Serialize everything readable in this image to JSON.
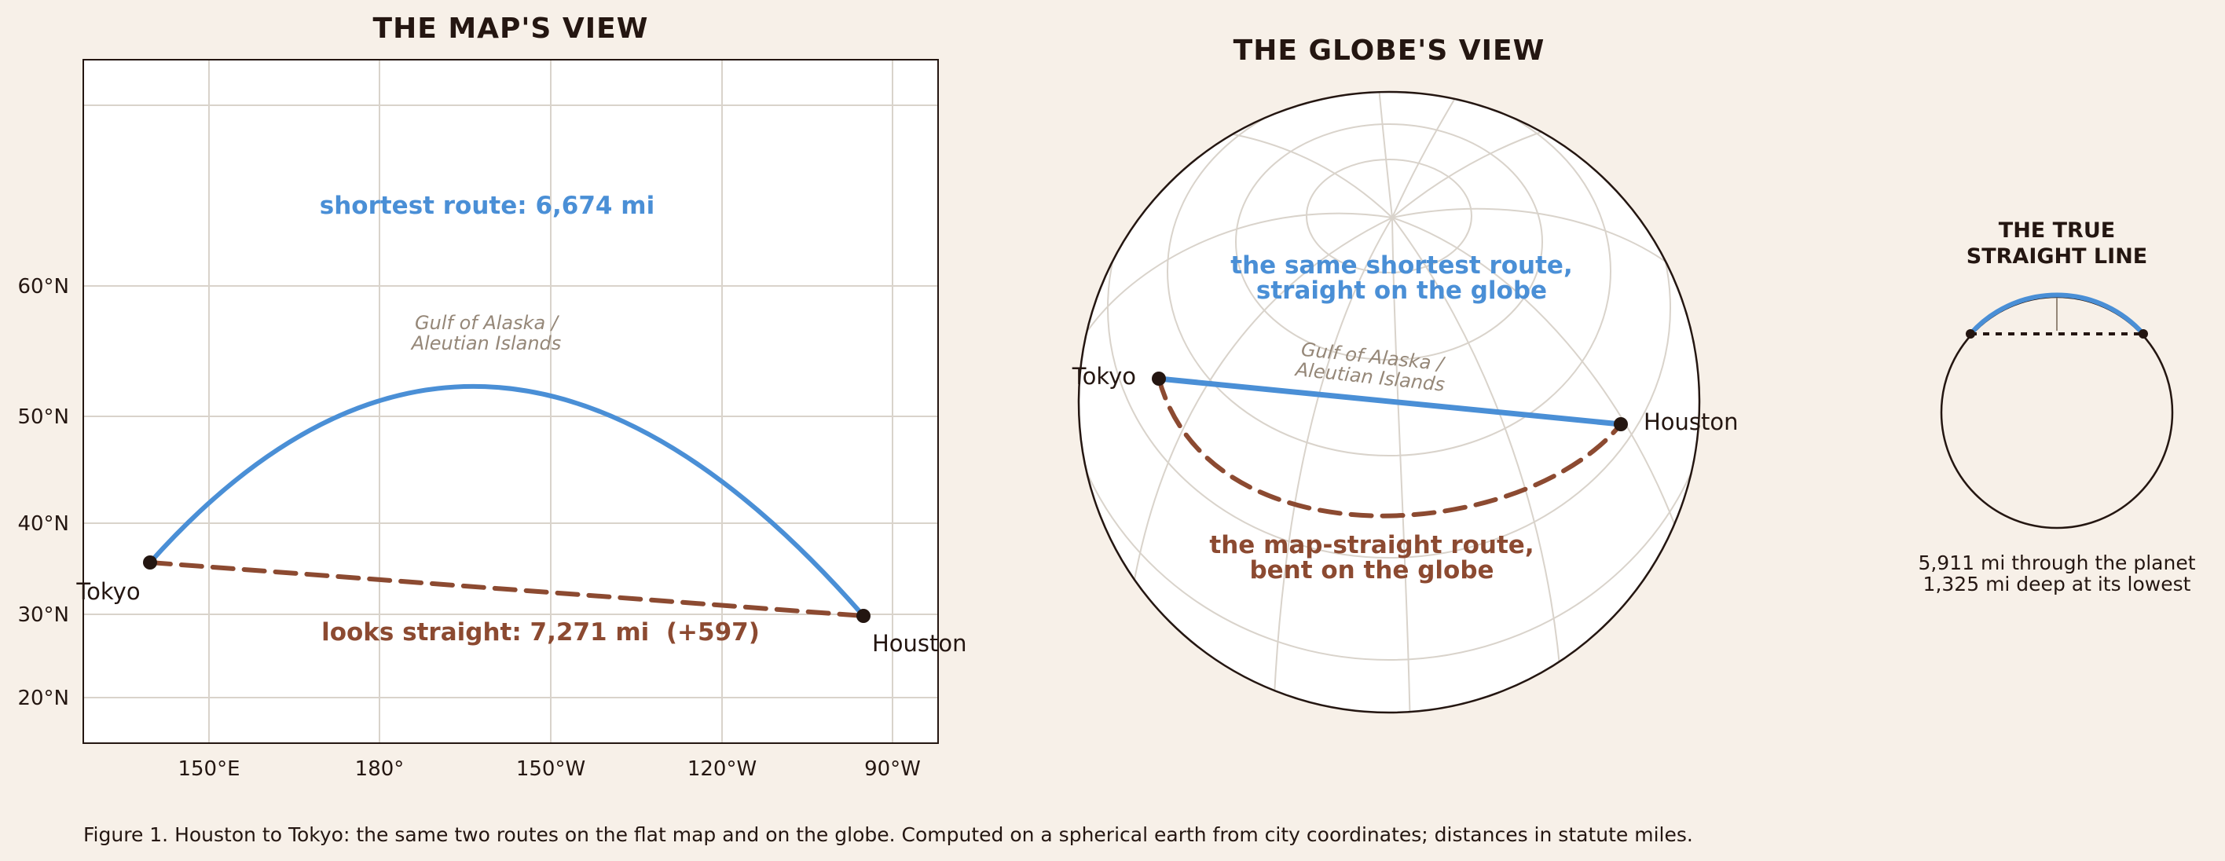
{
  "map_panel": {
    "title": "THE MAP'S VIEW",
    "lat_ticks": [
      "60°N",
      "50°N",
      "40°N",
      "30°N",
      "20°N"
    ],
    "lon_ticks": [
      "150°E",
      "180°",
      "150°W",
      "120°W",
      "90°W"
    ],
    "shortest_label": "shortest route: 6,674 mi",
    "straight_label": "looks straight: 7,271 mi  (+597)",
    "region_line1": "Gulf of Alaska /",
    "region_line2": "Aleutian Islands",
    "city_tokyo": "Tokyo",
    "city_houston": "Houston"
  },
  "globe_panel": {
    "title": "THE GLOBE'S VIEW",
    "shortest_line1": "the same shortest route,",
    "shortest_line2": "straight on the globe",
    "bent_line1": "the map-straight route,",
    "bent_line2": "bent on the globe",
    "region_line1": "Gulf of Alaska /",
    "region_line2": "Aleutian Islands",
    "city_tokyo": "Tokyo",
    "city_houston": "Houston"
  },
  "chord_panel": {
    "title_line1": "THE TRUE",
    "title_line2": "STRAIGHT LINE",
    "note_line1": "5,911 mi through the planet",
    "note_line2": "1,325 mi deep at its lowest"
  },
  "caption": "Figure 1. Houston to Tokyo: the same two routes on the flat map and on the globe. Computed on a spherical earth from city coordinates; distances in statute miles.",
  "colors": {
    "great_circle": "#4a8fd6",
    "rhumb_line": "#8c4a31",
    "ink": "#241611",
    "grid": "#d9d3cb",
    "background": "#f7f0e8"
  }
}
